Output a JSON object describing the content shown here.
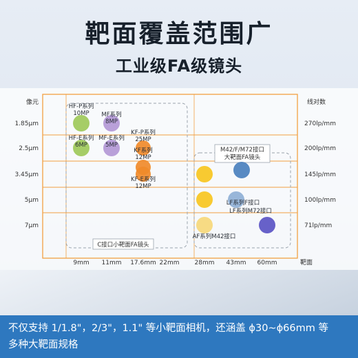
{
  "header": {
    "title": "靶面覆盖范围广",
    "subtitle": "工业级FA级镜头"
  },
  "footer": {
    "line1": "不仅支持 1/1.8\"，2/3\"，1.1\" 等小靶面相机，还涵盖 ϕ30~ϕ66mm 等",
    "line2": "多种大靶面规格"
  },
  "colors": {
    "frame": "#f2a041",
    "green": "#9ec95a",
    "purple": "#b398d6",
    "orange": "#f08a2a",
    "yellow": "#f7c51f",
    "yellow_light": "#f6d87a",
    "blue": "#4a80be",
    "blue_light": "#8fb0d6",
    "indigo": "#5a54c4",
    "footer_bg": "#2e78bf"
  },
  "chart_data": {
    "type": "scatter",
    "xlabel": "靶面",
    "ylabel_left": "像元",
    "ylabel_right": "线对数",
    "x_categories": [
      "9mm",
      "11mm",
      "17.6mm",
      "22mm",
      "28mm",
      "43mm",
      "60mm"
    ],
    "y_categories_left": [
      "1.85μm",
      "2.5μm",
      "3.45μm",
      "5μm",
      "7μm"
    ],
    "y_categories_right": [
      "270lp/mm",
      "200lp/mm",
      "145lp/mm",
      "100lp/mm",
      "71lp/mm"
    ],
    "groups": [
      {
        "label": "C接口小靶面FA镜头"
      },
      {
        "label_line1": "M42/F/M72接口",
        "label_line2": "大靶面FA镜头"
      }
    ],
    "points": [
      {
        "x": "9mm",
        "y": "1.85μm",
        "color": "green",
        "label_lines": [
          "HF-P系列",
          "10MP"
        ]
      },
      {
        "x": "9mm",
        "y": "2.5μm",
        "color": "green",
        "label_lines": [
          "HF-E系列",
          "6MP"
        ]
      },
      {
        "x": "11mm",
        "y": "1.85μm",
        "color": "purple",
        "label_lines": [
          "MF系列",
          "8MP"
        ]
      },
      {
        "x": "11mm",
        "y": "2.5μm",
        "color": "purple",
        "label_lines": [
          "MF-E系列",
          "5MP"
        ]
      },
      {
        "x": "17.6mm",
        "y": "2.5μm",
        "color": "orange",
        "label_lines": [
          "KF-P系列",
          "25MP"
        ]
      },
      {
        "x": "17.6mm",
        "y": "3.45μm",
        "color": "orange",
        "label_lines": [
          "KF系列",
          "12MP"
        ]
      },
      {
        "x": "17.6mm",
        "y": "3.45μm",
        "color": "orange",
        "label_lines": [
          "KF-E系列",
          "12MP"
        ]
      },
      {
        "x": "28mm",
        "y": "3.45μm",
        "color": "yellow",
        "label_lines": []
      },
      {
        "x": "28mm",
        "y": "5μm",
        "color": "yellow",
        "label_lines": []
      },
      {
        "x": "28mm",
        "y": "7μm",
        "color": "yellow_light",
        "label_lines": [
          "AF系列M42接口"
        ]
      },
      {
        "x": "43mm",
        "y": "3.45μm",
        "color": "blue",
        "label_lines": []
      },
      {
        "x": "43mm",
        "y": "5μm",
        "color": "blue_light",
        "label_lines": [
          "LF系列F接口"
        ]
      },
      {
        "x": "60mm",
        "y": "7μm",
        "color": "indigo",
        "label_lines": [
          "LF系列M72接口"
        ]
      }
    ]
  }
}
